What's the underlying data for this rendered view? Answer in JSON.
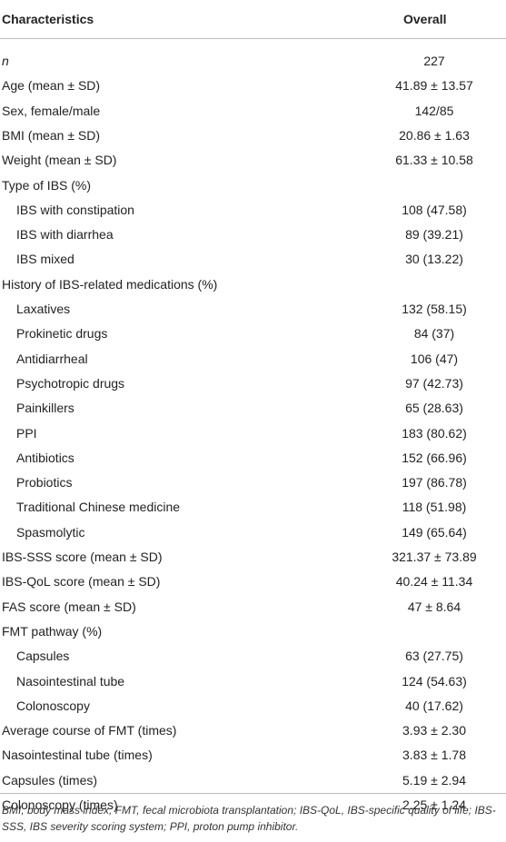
{
  "table": {
    "header": [
      "Characteristics",
      "Overall"
    ],
    "rows": [
      {
        "label": "n",
        "value": "227"
      },
      {
        "label": "Age (mean ± SD)",
        "value": "41.89 ± 13.57"
      },
      {
        "label": "Sex, female/male",
        "value": "142/85"
      },
      {
        "label": "BMI (mean ± SD)",
        "value": "20.86 ± 1.63"
      },
      {
        "label": "Weight (mean ± SD)",
        "value": "61.33 ± 10.58"
      },
      {
        "label": "Type of IBS (%)",
        "items": [
          {
            "label": "IBS with constipation",
            "value": "108 (47.58)"
          },
          {
            "label": "IBS with diarrhea",
            "value": "89 (39.21)"
          },
          {
            "label": "IBS mixed",
            "value": "30 (13.22)"
          }
        ]
      },
      {
        "label": "History of IBS-related medications (%)",
        "items": [
          {
            "label": "Laxatives",
            "value": "132 (58.15)"
          },
          {
            "label": "Prokinetic drugs",
            "value": "84 (37)"
          },
          {
            "label": "Antidiarrheal",
            "value": "106 (47)"
          },
          {
            "label": "Psychotropic drugs",
            "value": "97 (42.73)"
          },
          {
            "label": "Painkillers",
            "value": "65 (28.63)"
          },
          {
            "label": "PPI",
            "value": "183 (80.62)"
          },
          {
            "label": "Antibiotics",
            "value": "152 (66.96)"
          },
          {
            "label": "Probiotics",
            "value": "197 (86.78)"
          },
          {
            "label": "Traditional Chinese medicine",
            "value": "118 (51.98)"
          },
          {
            "label": "Spasmolytic",
            "value": "149 (65.64)"
          }
        ]
      },
      {
        "label": "IBS-SSS score (mean ± SD)",
        "value": "321.37 ± 73.89"
      },
      {
        "label": "IBS-QoL score (mean ± SD)",
        "value": "40.24 ± 11.34"
      },
      {
        "label": "FAS score (mean ± SD)",
        "value": "47 ± 8.64"
      },
      {
        "label": "FMT pathway (%)",
        "items": [
          {
            "label": "Capsules",
            "value": "63 (27.75)"
          },
          {
            "label": "Nasointestinal tube",
            "value": "124 (54.63)"
          },
          {
            "label": "Colonoscopy",
            "value": "40 (17.62)"
          }
        ]
      },
      {
        "label": "Average course of FMT (times)",
        "value": "3.93 ± 2.30"
      },
      {
        "label": "Nasointestinal tube (times)",
        "value": "3.83 ± 1.78"
      },
      {
        "label": "Capsules (times)",
        "value": "5.19 ± 2.94"
      },
      {
        "label": "Colonoscopy (times)",
        "value": "2.25 ± 1.24"
      }
    ],
    "footnote": "BMI, body mass index; FMT, fecal microbiota transplantation; IBS-QoL, IBS-specific quality of life; IBS-SSS, IBS severity scoring system; PPI, proton pump inhibitor."
  }
}
